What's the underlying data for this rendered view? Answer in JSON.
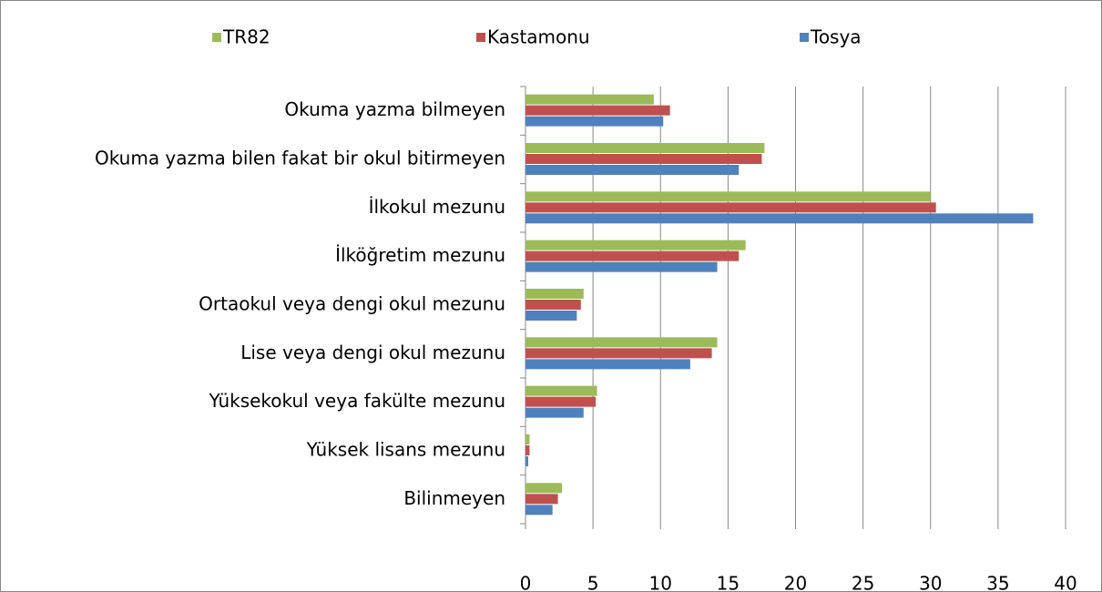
{
  "chart_data": {
    "type": "barh",
    "categories": [
      "Okuma yazma bilmeyen",
      "Okuma yazma bilen fakat bir okul bitirmeyen",
      "İlkokul mezunu",
      "İlköğretim mezunu",
      "Ortaokul veya dengi okul mezunu",
      "Lise veya dengi okul mezunu",
      "Yüksekokul veya fakülte mezunu",
      "Yüksek lisans mezunu",
      "Bilinmeyen"
    ],
    "series": [
      {
        "name": "TR82",
        "color": "#9bbb59",
        "values": [
          9.5,
          17.7,
          30.0,
          16.3,
          4.3,
          14.2,
          5.3,
          0.3,
          2.7
        ]
      },
      {
        "name": "Kastamonu",
        "color": "#c0504d",
        "values": [
          10.7,
          17.5,
          30.4,
          15.8,
          4.1,
          13.8,
          5.2,
          0.3,
          2.4
        ]
      },
      {
        "name": "Tosya",
        "color": "#4f81bd",
        "values": [
          10.2,
          15.8,
          37.6,
          14.2,
          3.8,
          12.2,
          4.3,
          0.2,
          2.0
        ]
      }
    ],
    "xlim": [
      0,
      40
    ],
    "xticks": [
      0,
      5,
      10,
      15,
      20,
      25,
      30,
      35,
      40
    ],
    "grid": true,
    "legend": "top"
  }
}
